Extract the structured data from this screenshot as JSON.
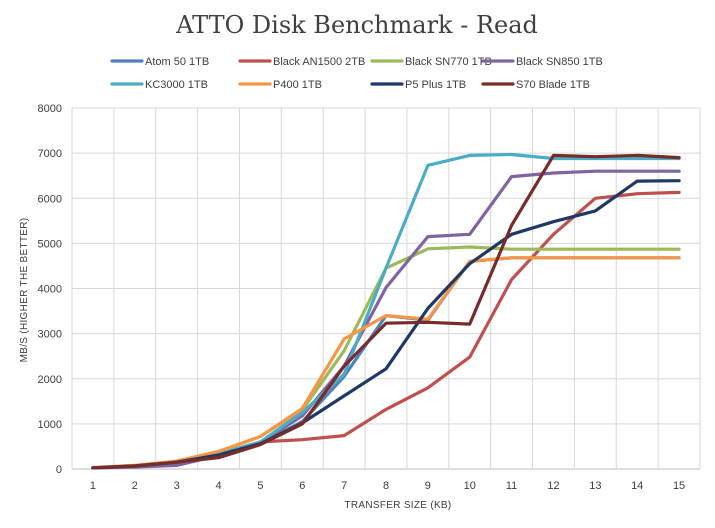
{
  "chart_data": {
    "type": "line",
    "title": "ATTO Disk Benchmark - Read",
    "xlabel": "TRANSFER SIZE (KB)",
    "ylabel": "MB/S (HIGHER THE BETTER)",
    "ylim": [
      0,
      8000
    ],
    "yticks": [
      "0",
      "1000",
      "2000",
      "3000",
      "4000",
      "5000",
      "6000",
      "7000",
      "8000"
    ],
    "categories": [
      "1",
      "2",
      "3",
      "4",
      "5",
      "6",
      "7",
      "8",
      "9",
      "10",
      "11",
      "12",
      "13",
      "14",
      "15"
    ],
    "grid": "vertical and horizontal",
    "legend_position": "top",
    "series": [
      {
        "name": "Atom 50 1TB",
        "color": "#4f81bd",
        "values": [
          25,
          60,
          130,
          300,
          560,
          1050,
          2050,
          3400,
          3300,
          4600,
          4680,
          4680,
          4680,
          4680,
          4680
        ]
      },
      {
        "name": "Black AN1500 2TB",
        "color": "#c0504d",
        "values": [
          25,
          65,
          140,
          330,
          600,
          650,
          740,
          1320,
          1800,
          2480,
          4200,
          5200,
          6000,
          6100,
          6130
        ]
      },
      {
        "name": "Black SN770 1TB",
        "color": "#9bbb59",
        "values": [
          30,
          75,
          160,
          380,
          720,
          1310,
          2620,
          4450,
          4880,
          4920,
          4870,
          4870,
          4870,
          4870,
          4870
        ]
      },
      {
        "name": "Black SN850 1TB",
        "color": "#8064a2",
        "values": [
          25,
          45,
          80,
          300,
          580,
          1180,
          2280,
          4020,
          5150,
          5200,
          6480,
          6560,
          6600,
          6600,
          6600
        ]
      },
      {
        "name": "KC3000 1TB",
        "color": "#4bacc6",
        "values": [
          25,
          70,
          155,
          330,
          600,
          1250,
          2100,
          4450,
          6730,
          6950,
          6970,
          6880,
          6880,
          6880,
          6880
        ]
      },
      {
        "name": "P400 1TB",
        "color": "#f79646",
        "values": [
          30,
          80,
          175,
          390,
          720,
          1340,
          2880,
          3400,
          3320,
          4600,
          4680,
          4680,
          4680,
          4680,
          4680
        ]
      },
      {
        "name": "P5 Plus 1TB",
        "color": "#1f3864",
        "values": [
          25,
          65,
          150,
          310,
          560,
          1020,
          1620,
          2220,
          3560,
          4550,
          5200,
          5480,
          5720,
          6380,
          6390
        ]
      },
      {
        "name": "S70 Blade 1TB",
        "color": "#772c2a",
        "values": [
          25,
          70,
          150,
          250,
          540,
          1000,
          2280,
          3230,
          3250,
          3210,
          5400,
          6950,
          6920,
          6950,
          6900
        ]
      }
    ]
  }
}
